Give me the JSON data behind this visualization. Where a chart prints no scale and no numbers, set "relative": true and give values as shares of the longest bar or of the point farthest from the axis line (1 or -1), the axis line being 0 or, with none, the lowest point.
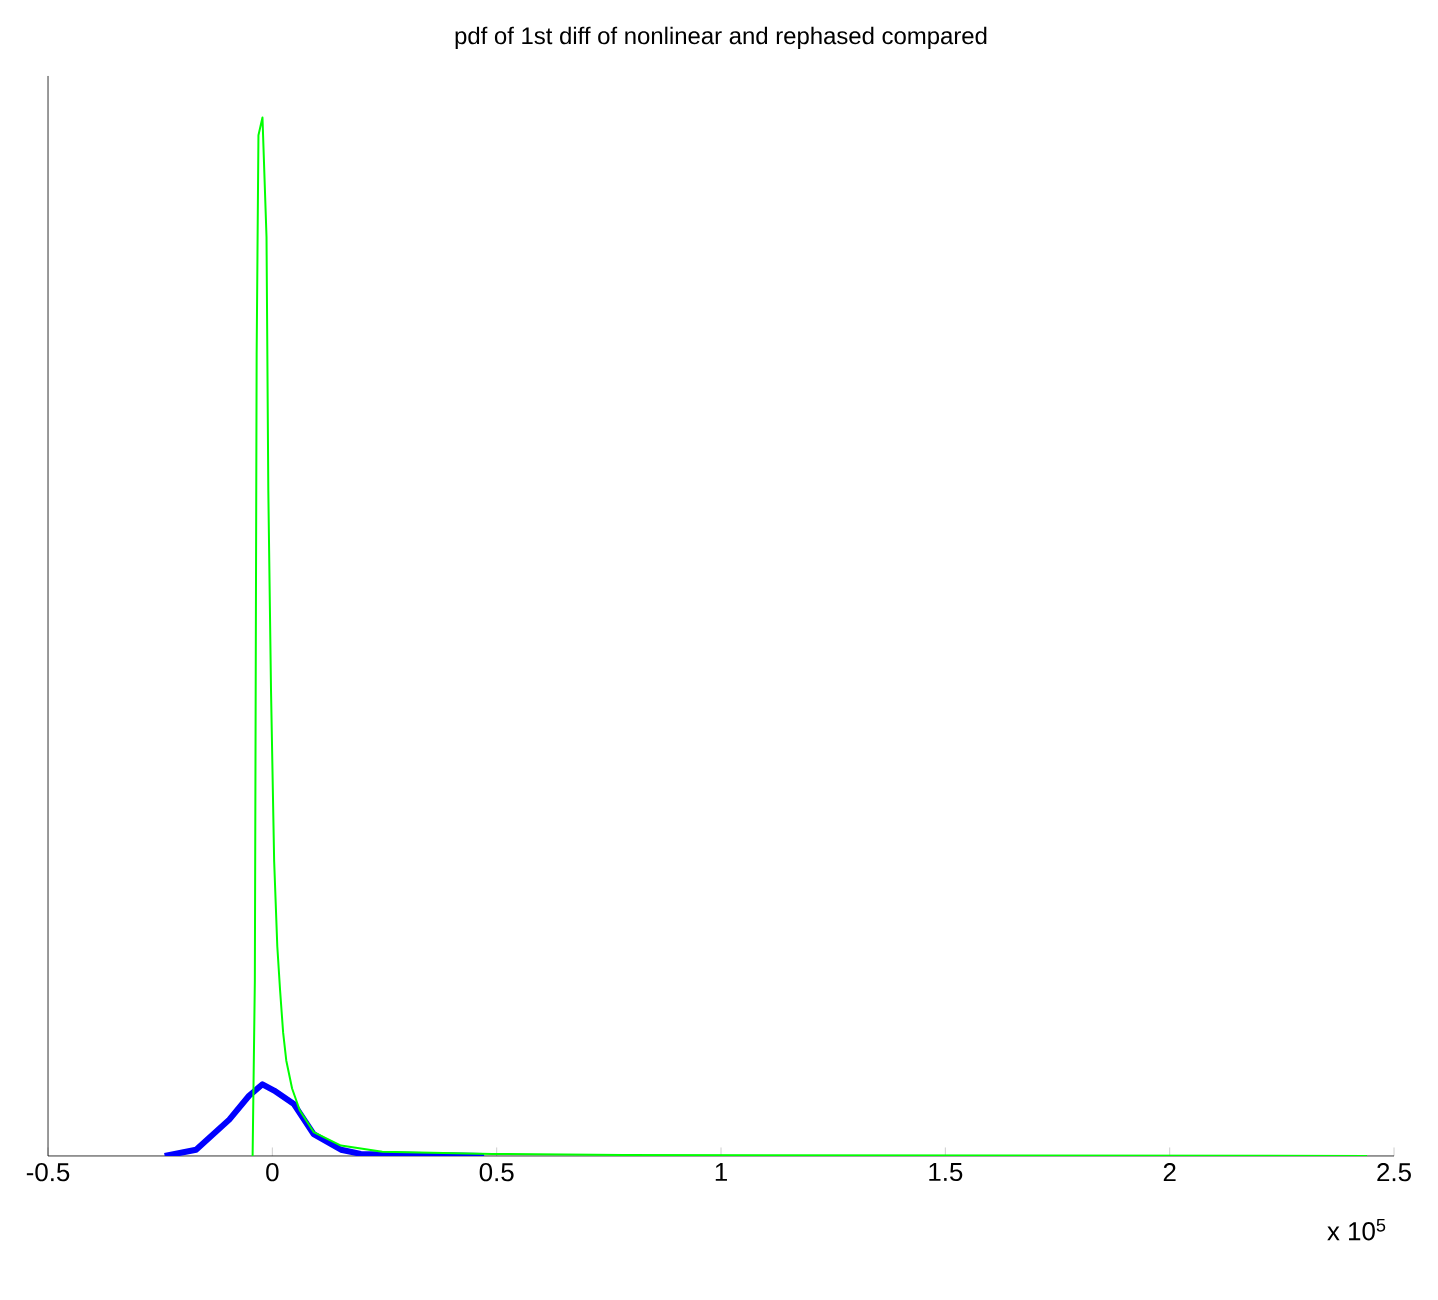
{
  "chart_data": {
    "type": "line",
    "title": "pdf of 1st diff of nonlinear and rephased compared",
    "xlabel": "x 10$^{5}$",
    "relative": true,
    "tick_labels": "x",
    "xlim": [
      -0.5,
      2.5
    ],
    "xticks": [
      -0.5,
      0,
      0.5,
      1,
      1.5,
      2,
      2.5
    ],
    "series": [
      {
        "color": "#00ff00",
        "x": [
          -0.044,
          -0.039,
          -0.035,
          -0.031,
          -0.022,
          -0.013,
          -0.009,
          -0.003,
          0.004,
          0.011,
          0.017,
          0.024,
          0.031,
          0.044,
          0.061,
          0.092,
          0.153,
          0.245,
          0.49,
          0.78,
          2.44
        ],
        "values": [
          0,
          0.169,
          0.772,
          0.983,
          1,
          0.885,
          0.641,
          0.449,
          0.284,
          0.202,
          0.161,
          0.119,
          0.092,
          0.065,
          0.044,
          0.023,
          0.01,
          0.004,
          0.002,
          0.001,
          0
        ]
      },
      {
        "color": "#0000ff",
        "x": [
          -0.24,
          -0.17,
          -0.096,
          -0.052,
          -0.022,
          0.004,
          0.048,
          0.092,
          0.153,
          0.197,
          0.472
        ],
        "values": [
          0,
          0.006,
          0.035,
          0.058,
          0.069,
          0.063,
          0.05,
          0.021,
          0.006,
          0.002,
          0
        ]
      }
    ]
  }
}
